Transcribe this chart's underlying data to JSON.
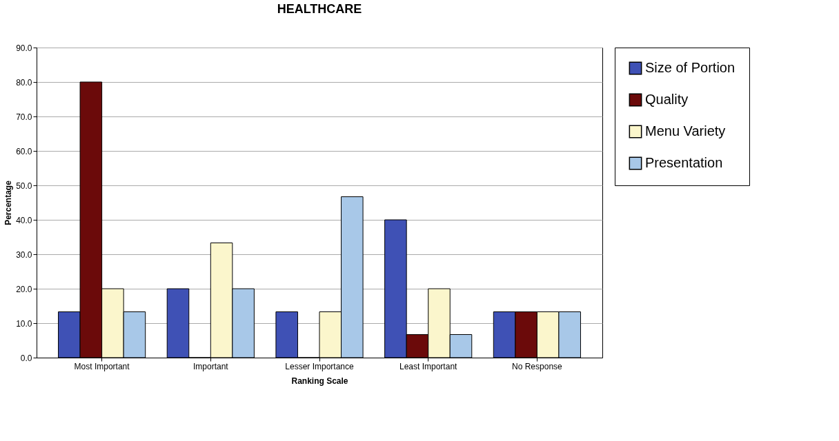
{
  "chart_data": {
    "type": "bar",
    "title": "HEALTHCARE",
    "xlabel": "Ranking Scale",
    "ylabel": "Percentage",
    "categories": [
      "Most Important",
      "Important",
      "Lesser Importance",
      "Least Important",
      "No Response"
    ],
    "series": [
      {
        "name": "Size of Portion",
        "color": "#3f51b5",
        "values": [
          13.3,
          20.0,
          13.3,
          40.0,
          13.3
        ]
      },
      {
        "name": "Quality",
        "color": "#6b0a0a",
        "values": [
          80.0,
          0.0,
          0.0,
          6.7,
          13.3
        ]
      },
      {
        "name": "Menu Variety",
        "color": "#fbf6cc",
        "values": [
          20.0,
          33.3,
          13.3,
          20.0,
          13.3
        ]
      },
      {
        "name": "Presentation",
        "color": "#a8c8e8",
        "values": [
          13.3,
          20.0,
          46.7,
          6.7,
          13.3
        ]
      }
    ],
    "ylim": [
      0,
      90
    ],
    "yticks": [
      {
        "value": 0,
        "label": "0.0"
      },
      {
        "value": 10,
        "label": "10.0"
      },
      {
        "value": 20,
        "label": "20.0"
      },
      {
        "value": 30,
        "label": "30.0"
      },
      {
        "value": 40,
        "label": "40.0"
      },
      {
        "value": 50,
        "label": "50.0"
      },
      {
        "value": 60,
        "label": "60.0"
      },
      {
        "value": 70,
        "label": "70.0"
      },
      {
        "value": 80,
        "label": "80.0"
      },
      {
        "value": 90,
        "label": "90.0"
      }
    ],
    "grid": "y",
    "legend": "right"
  }
}
